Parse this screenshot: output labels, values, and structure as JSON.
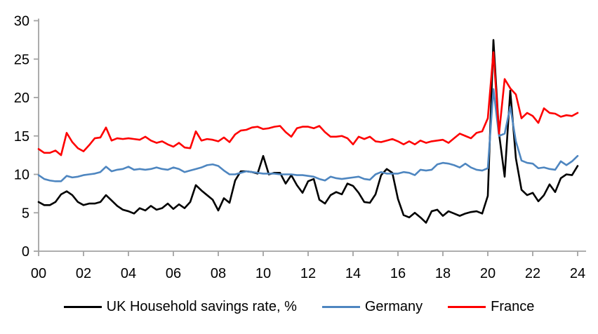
{
  "chart_data": {
    "type": "line",
    "title": "",
    "xlabel": "",
    "ylabel": "",
    "x_mode": "quarterly",
    "x_start_year": 2000,
    "x_end": "2024Q1",
    "grid": false,
    "legend_position": "bottom",
    "axis_color": "#a3a3a3",
    "text_color": "#000000",
    "ylim": [
      0,
      30
    ],
    "y_axis": {
      "ticks": [
        {
          "label": "0",
          "value": 0
        },
        {
          "label": "5",
          "value": 5
        },
        {
          "label": "10",
          "value": 10
        },
        {
          "label": "15",
          "value": 15
        },
        {
          "label": "20",
          "value": 20
        },
        {
          "label": "25",
          "value": 25
        },
        {
          "label": "30",
          "value": 30
        }
      ]
    },
    "x_axis": {
      "ticks": [
        {
          "label": "00",
          "quarter": 0
        },
        {
          "label": "02",
          "quarter": 8
        },
        {
          "label": "04",
          "quarter": 16
        },
        {
          "label": "06",
          "quarter": 24
        },
        {
          "label": "08",
          "quarter": 32
        },
        {
          "label": "10",
          "quarter": 40
        },
        {
          "label": "12",
          "quarter": 48
        },
        {
          "label": "14",
          "quarter": 56
        },
        {
          "label": "16",
          "quarter": 64
        },
        {
          "label": "18",
          "quarter": 72
        },
        {
          "label": "20",
          "quarter": 80
        },
        {
          "label": "22",
          "quarter": 88
        },
        {
          "label": "24",
          "quarter": 96
        }
      ]
    },
    "series": [
      {
        "name": "UK Household savings rate, %",
        "color": "#000000",
        "values": [
          6.4,
          6.0,
          6.0,
          6.4,
          7.4,
          7.8,
          7.3,
          6.4,
          6.0,
          6.2,
          6.2,
          6.4,
          7.3,
          6.6,
          5.9,
          5.4,
          5.2,
          4.9,
          5.6,
          5.3,
          5.9,
          5.4,
          5.6,
          6.2,
          5.5,
          6.1,
          5.6,
          6.4,
          8.6,
          7.9,
          7.3,
          6.7,
          5.3,
          6.9,
          6.3,
          9.2,
          10.4,
          10.4,
          10.3,
          10.1,
          12.4,
          10.0,
          10.2,
          10.2,
          8.8,
          9.9,
          8.6,
          7.6,
          9.1,
          9.4,
          6.7,
          6.2,
          7.3,
          7.7,
          7.4,
          8.8,
          8.5,
          7.6,
          6.4,
          6.3,
          7.4,
          9.9,
          10.7,
          10.2,
          6.8,
          4.7,
          4.4,
          5.0,
          4.4,
          3.7,
          5.2,
          5.4,
          4.6,
          5.2,
          4.9,
          4.6,
          4.9,
          5.1,
          5.2,
          4.9,
          7.2,
          27.5,
          15.3,
          9.7,
          20.9,
          12.1,
          8.0,
          7.3,
          7.6,
          6.5,
          7.3,
          8.7,
          7.7,
          9.5,
          10.0,
          9.9,
          11.1
        ]
      },
      {
        "name": "Germany",
        "color": "#4e86c0",
        "values": [
          9.9,
          9.4,
          9.2,
          9.1,
          9.1,
          9.8,
          9.6,
          9.7,
          9.9,
          10.0,
          10.1,
          10.3,
          11.0,
          10.4,
          10.6,
          10.7,
          11.0,
          10.6,
          10.7,
          10.6,
          10.7,
          10.9,
          10.7,
          10.6,
          10.9,
          10.7,
          10.3,
          10.5,
          10.7,
          10.9,
          11.2,
          11.3,
          11.1,
          10.5,
          10.0,
          10.0,
          10.2,
          10.4,
          10.3,
          10.2,
          10.1,
          10.1,
          10.1,
          10.0,
          10.0,
          10.0,
          9.9,
          9.9,
          9.8,
          9.7,
          9.4,
          9.2,
          9.7,
          9.5,
          9.4,
          9.5,
          9.6,
          9.7,
          9.4,
          9.3,
          10.0,
          10.3,
          10.1,
          10.1,
          10.1,
          10.3,
          10.2,
          9.9,
          10.6,
          10.5,
          10.6,
          11.3,
          11.5,
          11.4,
          11.2,
          10.9,
          11.4,
          10.9,
          10.6,
          10.5,
          10.8,
          21.1,
          15.0,
          15.3,
          18.8,
          14.3,
          11.8,
          11.5,
          11.4,
          10.8,
          10.9,
          10.7,
          10.6,
          11.7,
          11.2,
          11.7,
          12.4
        ]
      },
      {
        "name": "France",
        "color": "#fe0000",
        "values": [
          13.3,
          12.8,
          12.8,
          13.1,
          12.5,
          15.4,
          14.2,
          13.4,
          13.0,
          13.8,
          14.7,
          14.8,
          16.1,
          14.4,
          14.7,
          14.6,
          14.7,
          14.6,
          14.5,
          14.9,
          14.4,
          14.1,
          14.3,
          13.9,
          13.6,
          14.1,
          13.5,
          13.4,
          15.6,
          14.4,
          14.6,
          14.5,
          14.3,
          14.8,
          14.2,
          15.2,
          15.7,
          15.8,
          16.1,
          16.2,
          15.9,
          16.0,
          16.2,
          16.3,
          15.5,
          14.9,
          16.0,
          16.2,
          16.2,
          16.0,
          16.3,
          15.5,
          14.9,
          14.9,
          15.0,
          14.7,
          13.9,
          14.9,
          14.6,
          14.9,
          14.3,
          14.2,
          14.4,
          14.6,
          14.3,
          13.9,
          14.3,
          13.9,
          14.4,
          14.1,
          14.3,
          14.4,
          14.5,
          14.1,
          14.7,
          15.3,
          15.0,
          14.7,
          15.4,
          15.6,
          17.3,
          25.9,
          15.3,
          22.4,
          21.2,
          20.4,
          17.3,
          18.0,
          17.6,
          16.7,
          18.6,
          18.0,
          17.9,
          17.5,
          17.7,
          17.6,
          18.0
        ]
      }
    ]
  }
}
